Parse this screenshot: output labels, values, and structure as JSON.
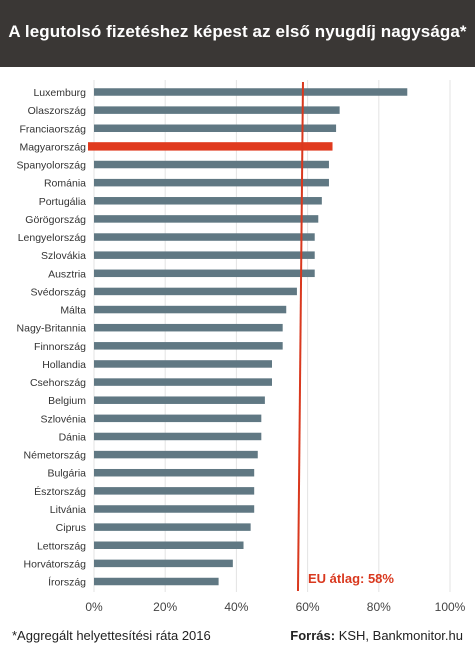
{
  "header": {
    "title": "A legutolsó fizetéshez képest az első nyugdíj nagysága*"
  },
  "footer": {
    "note": "*Aggregált  helyettesítési  ráta 2016",
    "source_label": "Forrás:",
    "source_value": "KSH, Bankmonitor.hu"
  },
  "colors": {
    "bar": "#607883",
    "highlight": "#e03a1e",
    "reference_line": "#d9381e",
    "header_bg": "#3a3735"
  },
  "chart_data": {
    "type": "bar",
    "orientation": "horizontal",
    "categories": [
      "Luxemburg",
      "Olaszország",
      "Franciaország",
      "Magyarország",
      "Spanyolország",
      "Románia",
      "Portugália",
      "Görögország",
      "Lengyelország",
      "Szlovákia",
      "Ausztria",
      "Svédország",
      "Málta",
      "Nagy-Britannia",
      "Finnország",
      "Hollandia",
      "Csehország",
      "Belgium",
      "Szlovénia",
      "Dánia",
      "Németország",
      "Bulgária",
      "Észtország",
      "Litvánia",
      "Ciprus",
      "Lettország",
      "Horvátország",
      "Írország"
    ],
    "values": [
      88,
      69,
      68,
      67,
      66,
      66,
      64,
      63,
      62,
      62,
      62,
      57,
      54,
      53,
      53,
      50,
      50,
      48,
      47,
      47,
      46,
      45,
      45,
      45,
      44,
      42,
      39,
      35
    ],
    "highlight": "Magyarország",
    "xlim": [
      0,
      100
    ],
    "xticks": [
      "0%",
      "20%",
      "40%",
      "60%",
      "80%",
      "100%"
    ],
    "grid": true,
    "reference": {
      "value": 58,
      "label": "EU átlag: 58%"
    }
  }
}
